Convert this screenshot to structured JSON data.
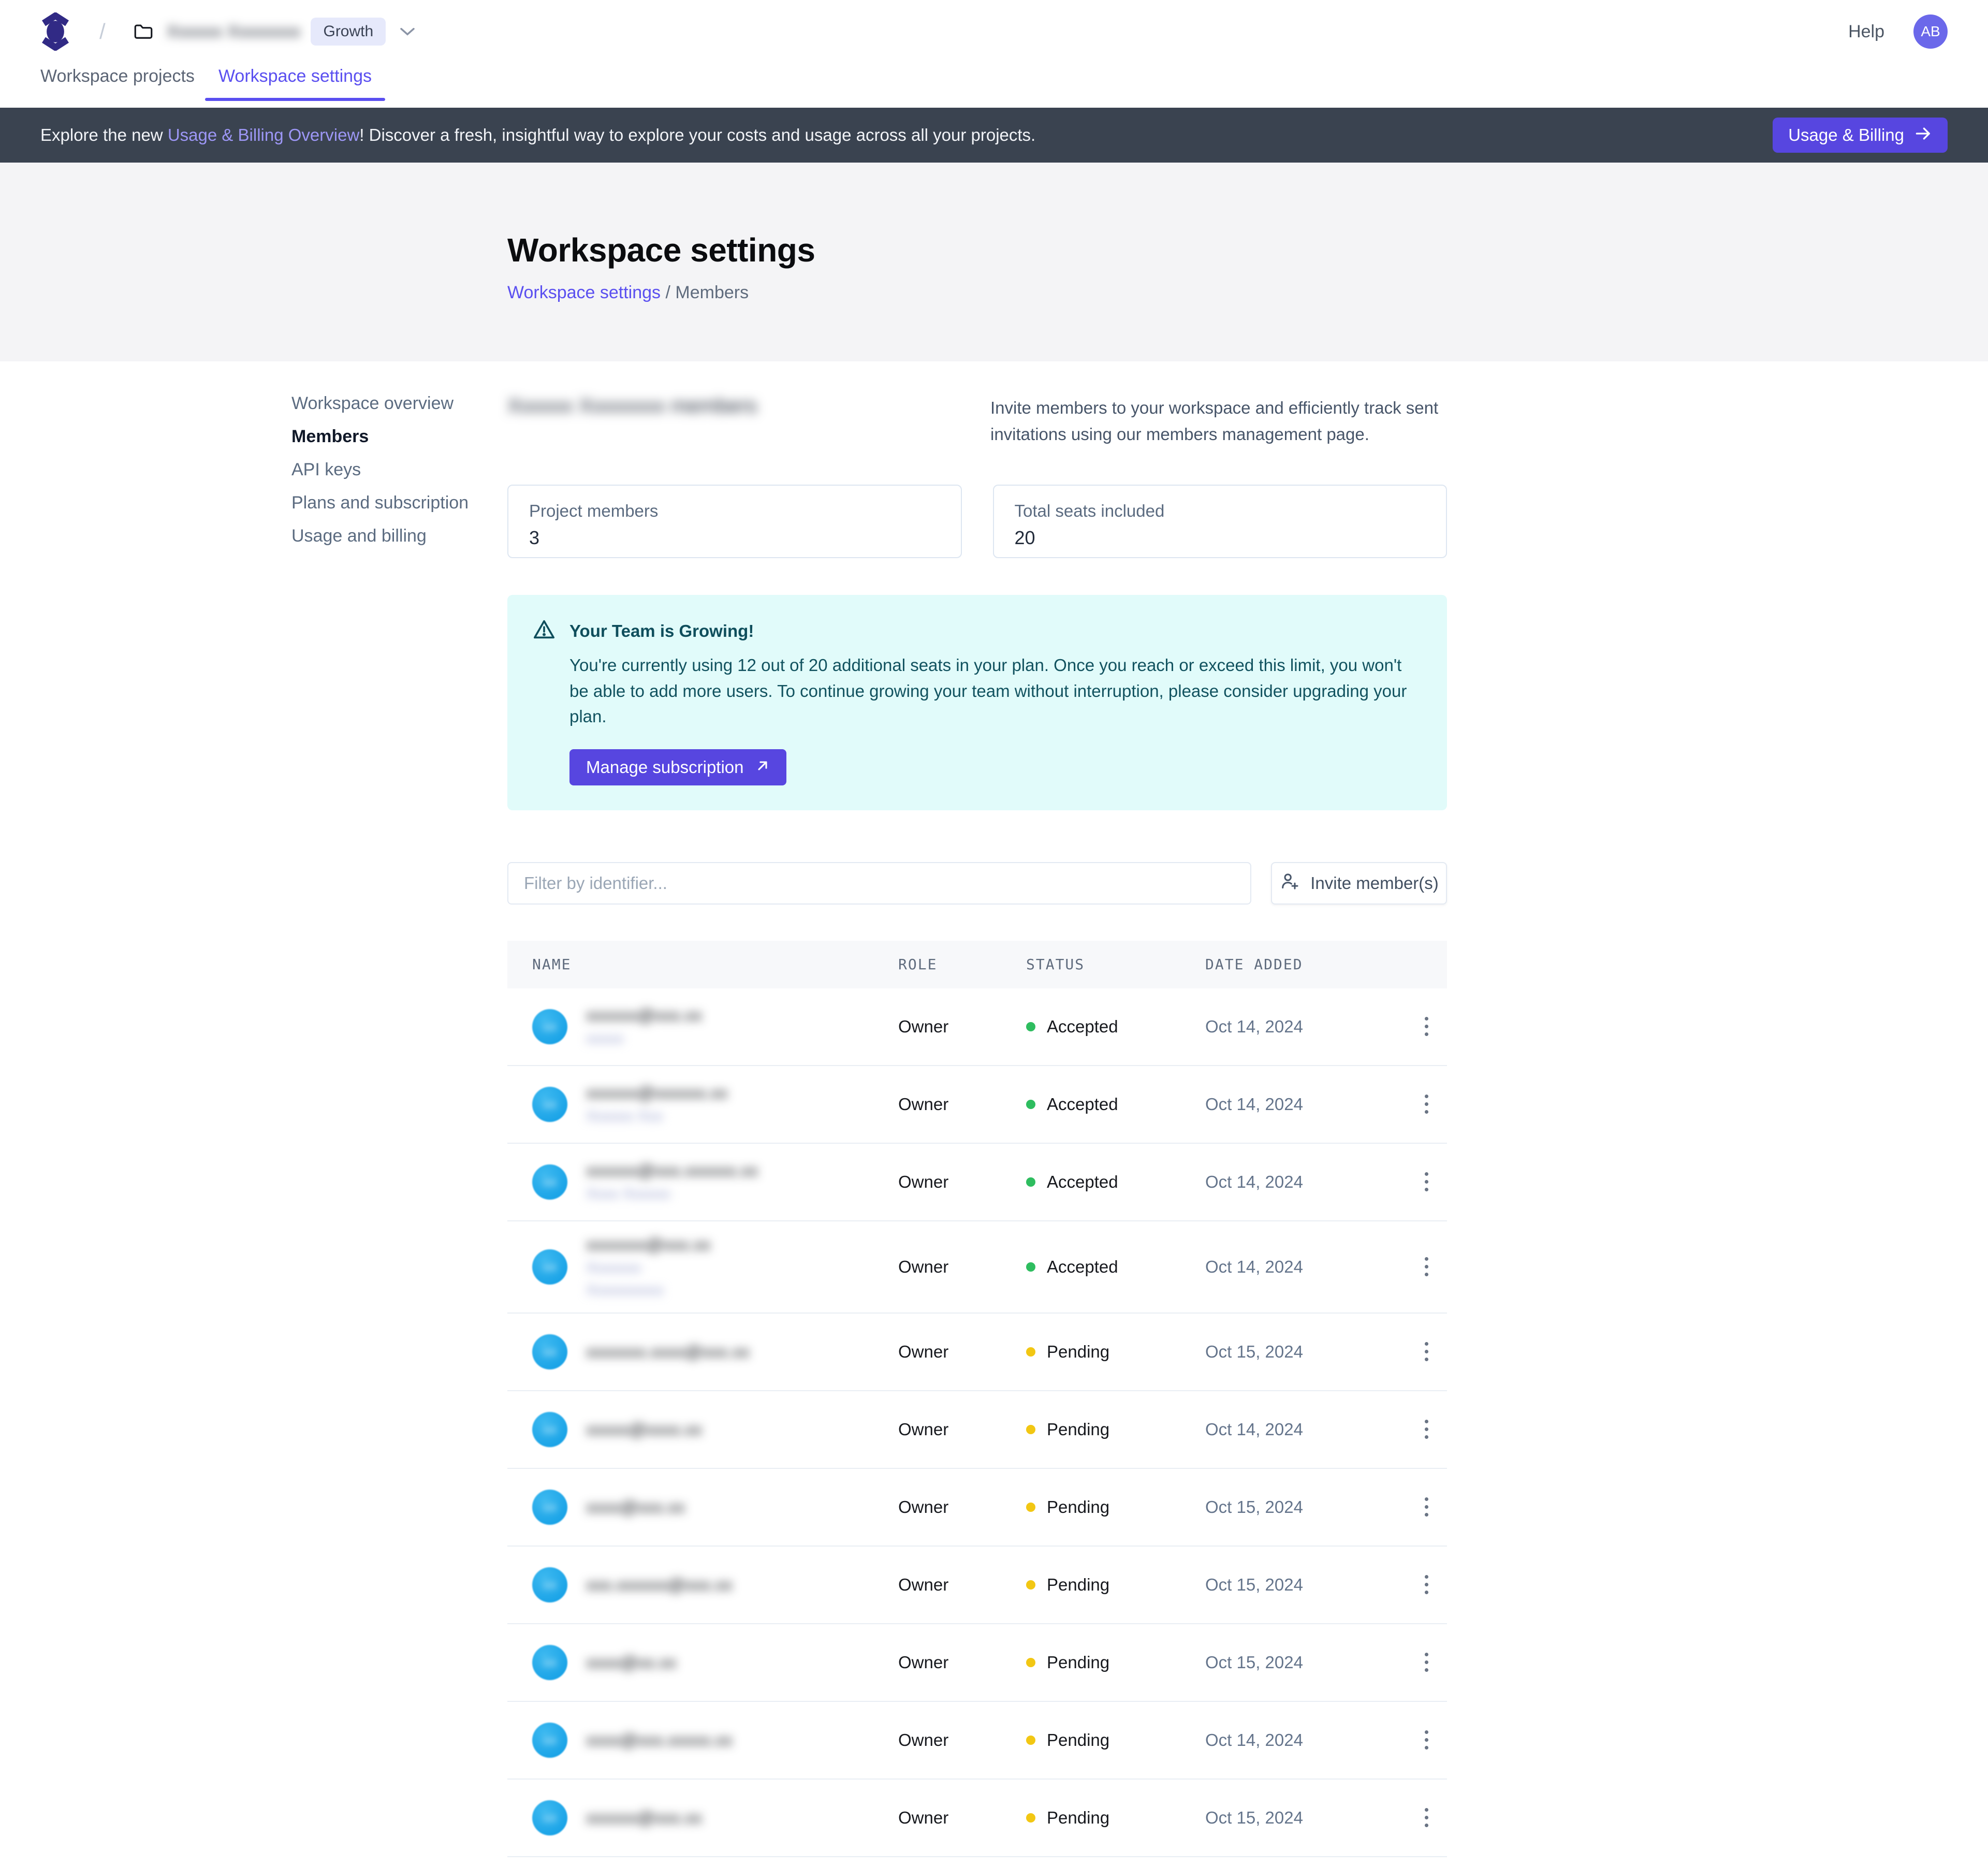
{
  "colors": {
    "accent_button": "#5746e0",
    "accent_link": "#5a4ff0",
    "banner_bg": "#3a4350",
    "banner_link": "#9d97f6",
    "plan_badge_bg": "#e6e9fb",
    "top_avatar_bg": "#6b68ea",
    "row_avatar_bg": "#17a5e9",
    "alert_bg": "#e1fbfa",
    "alert_text": "#11525f",
    "status_accepted_dot": "#2ebd5f",
    "status_pending_dot": "#f2c713"
  },
  "header": {
    "breadcrumb_divider": "/",
    "workspace_name_blurred": "Xxxxxx Xxxxxxxx",
    "plan_badge": "Growth",
    "help_label": "Help",
    "avatar_initials": "AB"
  },
  "tabs": [
    {
      "label": "Workspace projects",
      "active": false
    },
    {
      "label": "Workspace settings",
      "active": true
    }
  ],
  "banner": {
    "text_pre": "Explore the new ",
    "link_text": "Usage & Billing Overview",
    "text_post": "! Discover a fresh, insightful way to explore your costs and usage across all your projects.",
    "button_label": "Usage & Billing"
  },
  "hero": {
    "title": "Workspace settings",
    "breadcrumb_link": "Workspace settings",
    "breadcrumb_rest": " / Members"
  },
  "sidebar": {
    "items": [
      {
        "label": "Workspace overview",
        "active": false
      },
      {
        "label": "Members",
        "active": true
      },
      {
        "label": "API keys",
        "active": false
      },
      {
        "label": "Plans and subscription",
        "active": false
      },
      {
        "label": "Usage and billing",
        "active": false
      }
    ]
  },
  "members": {
    "heading_blurred": "Xxxxxx Xxxxxxxx members",
    "description": "Invite members to your workspace and efficiently track sent invitations using our members management page.",
    "cards": [
      {
        "label": "Project members",
        "value": "3"
      },
      {
        "label": "Total seats included",
        "value": "20"
      }
    ],
    "alert": {
      "title": "Your Team is Growing!",
      "body": "You're currently using 12 out of 20 additional seats in your plan. Once you reach or exceed this limit, you won't be able to add more users. To continue growing your team without interruption, please consider upgrading your plan.",
      "button_label": "Manage subscription"
    },
    "filter_placeholder": "Filter by identifier...",
    "invite_button_label": "Invite member(s)",
    "table": {
      "columns": [
        "NAME",
        "ROLE",
        "STATUS",
        "DATE ADDED"
      ],
      "rows": [
        {
          "email_blurred": "xxxxxx@xxx.xx",
          "sub_blurred": [
            "xxxxx"
          ],
          "avatar_blurred": "xx",
          "role": "Owner",
          "status": "Accepted",
          "date": "Oct 14, 2024"
        },
        {
          "email_blurred": "xxxxxx@xxxxxx.xx",
          "sub_blurred": [
            "Xxxxxx Xxx"
          ],
          "avatar_blurred": "xx",
          "role": "Owner",
          "status": "Accepted",
          "date": "Oct 14, 2024"
        },
        {
          "email_blurred": "xxxxxx@xxx.xxxxxx.xx",
          "sub_blurred": [
            "Xxxx Xxxxxx"
          ],
          "avatar_blurred": "xx",
          "role": "Owner",
          "status": "Accepted",
          "date": "Oct 14, 2024"
        },
        {
          "email_blurred": "xxxxxxx@xxx.xx",
          "sub_blurred": [
            "Xxxxxxx",
            "Xxxxxxxxxx"
          ],
          "avatar_blurred": "xx",
          "role": "Owner",
          "status": "Accepted",
          "date": "Oct 14, 2024"
        },
        {
          "email_blurred": "xxxxxxx.xxxx@xxx.xx",
          "sub_blurred": [],
          "avatar_blurred": "xx",
          "role": "Owner",
          "status": "Pending",
          "date": "Oct 15, 2024"
        },
        {
          "email_blurred": "xxxxx@xxxx.xx",
          "sub_blurred": [],
          "avatar_blurred": "xx",
          "role": "Owner",
          "status": "Pending",
          "date": "Oct 14, 2024"
        },
        {
          "email_blurred": "xxxx@xxx.xx",
          "sub_blurred": [],
          "avatar_blurred": "xx",
          "role": "Owner",
          "status": "Pending",
          "date": "Oct 15, 2024"
        },
        {
          "email_blurred": "xxx.xxxxxx@xxx.xx",
          "sub_blurred": [],
          "avatar_blurred": "xx",
          "role": "Owner",
          "status": "Pending",
          "date": "Oct 15, 2024"
        },
        {
          "email_blurred": "xxxx@xx.xx",
          "sub_blurred": [],
          "avatar_blurred": "xx",
          "role": "Owner",
          "status": "Pending",
          "date": "Oct 15, 2024"
        },
        {
          "email_blurred": "xxxx@xxx.xxxxx.xx",
          "sub_blurred": [],
          "avatar_blurred": "xx",
          "role": "Owner",
          "status": "Pending",
          "date": "Oct 14, 2024"
        },
        {
          "email_blurred": "xxxxxx@xxx.xx",
          "sub_blurred": [],
          "avatar_blurred": "xx",
          "role": "Owner",
          "status": "Pending",
          "date": "Oct 15, 2024"
        }
      ]
    }
  }
}
